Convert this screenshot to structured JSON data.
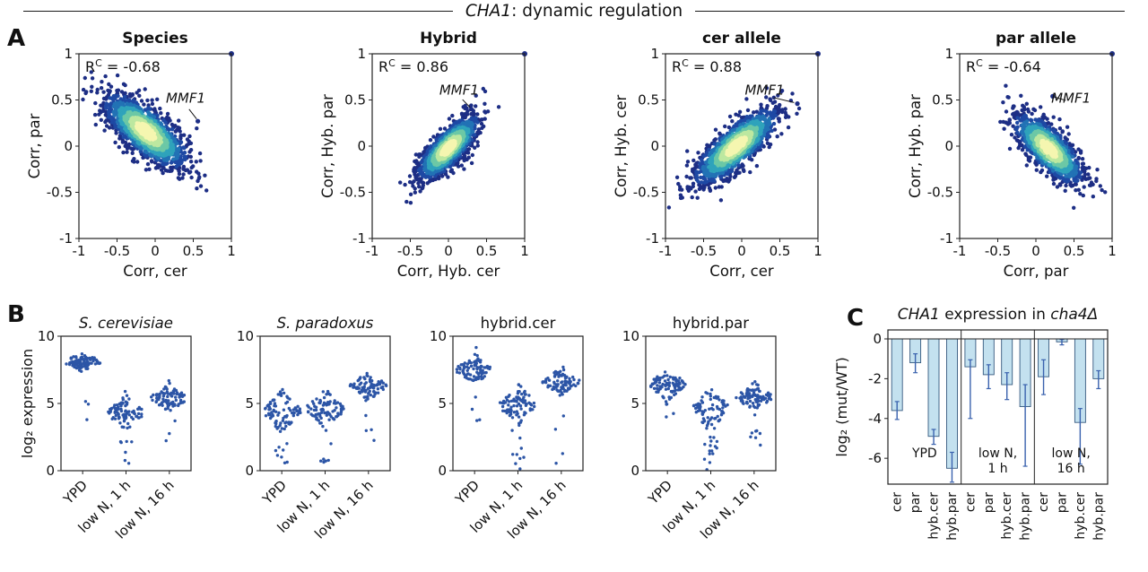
{
  "figure_title": {
    "gene": "CHA1",
    "rest": ": dynamic regulation"
  },
  "panel_letters": {
    "A": "A",
    "B": "B",
    "C": "C"
  },
  "colors": {
    "axis": "#222222",
    "text": "#111111",
    "scatter_palette": [
      "#1d2e85",
      "#1e49a4",
      "#2272b5",
      "#2fa3bb",
      "#6cc8a6",
      "#bde8a0",
      "#f5f6b0"
    ],
    "scatter_thresholds": [
      2.05,
      1.7,
      1.4,
      1.1,
      0.8,
      0.5
    ],
    "swarm_dot": "#2c55a6",
    "bar_fill": "#c3e1ef",
    "bar_edge": "#35597f",
    "error_bar": "#3a62ae"
  },
  "chart_data": [
    {
      "type": "scatter",
      "name": "species",
      "title": "Species",
      "stat": {
        "pre": "R",
        "sup": "C",
        "post": " = -0.68"
      },
      "xlabel": "Corr, cer",
      "ylabel": "Corr, par",
      "xlim": [
        -1,
        1
      ],
      "ylim": [
        -1,
        1
      ],
      "xticks": [
        -1,
        -0.5,
        0,
        0.5,
        1
      ],
      "yticks": [
        -1,
        -0.5,
        0,
        0.5,
        1
      ],
      "cloud": {
        "cx": -0.12,
        "cy": 0.16,
        "angle_deg": -33,
        "sd_major": 0.3,
        "sd_minor": 0.115,
        "n": 1500,
        "seed": 7
      },
      "outlier_point": [
        1,
        1
      ],
      "annotation": {
        "text": "MMF1",
        "tx": 0.4,
        "ty": 0.47,
        "px": 0.56,
        "py": 0.27
      }
    },
    {
      "type": "scatter",
      "name": "hybrid",
      "title": "Hybrid",
      "stat": {
        "pre": "R",
        "sup": "C",
        "post": " = 0.86"
      },
      "xlabel": "Corr, Hyb. cer",
      "ylabel": "Corr, Hyb. par",
      "xlim": [
        -1,
        1
      ],
      "ylim": [
        -1,
        1
      ],
      "xticks": [
        -1,
        -0.5,
        0,
        0.5,
        1
      ],
      "yticks": [
        -1,
        -0.5,
        0,
        0.5,
        1
      ],
      "cloud": {
        "cx": 0.0,
        "cy": -0.02,
        "angle_deg": 40,
        "sd_major": 0.24,
        "sd_minor": 0.085,
        "n": 1350,
        "seed": 8
      },
      "outlier_point": [
        1,
        1
      ],
      "annotation": {
        "text": "MMF1",
        "tx": 0.14,
        "ty": 0.56,
        "px": 0.3,
        "py": 0.4
      }
    },
    {
      "type": "scatter",
      "name": "cer-allele",
      "title": "cer allele",
      "stat": {
        "pre": "R",
        "sup": "C",
        "post": " = 0.88"
      },
      "xlabel": "Corr, cer",
      "ylabel": "Corr, Hyb. cer",
      "xlim": [
        -1,
        1
      ],
      "ylim": [
        -1,
        1
      ],
      "xticks": [
        -1,
        -0.5,
        0,
        0.5,
        1
      ],
      "yticks": [
        -1,
        -0.5,
        0,
        0.5,
        1
      ],
      "cloud": {
        "cx": -0.07,
        "cy": 0.0,
        "angle_deg": 35,
        "sd_major": 0.31,
        "sd_minor": 0.1,
        "n": 1500,
        "seed": 9
      },
      "outlier_point": [
        1,
        1
      ],
      "annotation": {
        "text": "MMF1",
        "tx": 0.3,
        "ty": 0.56,
        "px": 0.73,
        "py": 0.46
      }
    },
    {
      "type": "scatter",
      "name": "par-allele",
      "title": "par allele",
      "stat": {
        "pre": "R",
        "sup": "C",
        "post": " = -0.64"
      },
      "xlabel": "Corr, par",
      "ylabel": "Corr, Hyb. par",
      "xlim": [
        -1,
        1
      ],
      "ylim": [
        -1,
        1
      ],
      "xticks": [
        -1,
        -0.5,
        0,
        0.5,
        1
      ],
      "yticks": [
        -1,
        -0.5,
        0,
        0.5,
        1
      ],
      "cloud": {
        "cx": 0.17,
        "cy": -0.03,
        "angle_deg": -38,
        "sd_major": 0.26,
        "sd_minor": 0.1,
        "n": 1300,
        "seed": 10
      },
      "outlier_point": [
        1,
        1
      ],
      "annotation": {
        "text": "MMF1",
        "tx": 0.46,
        "ty": 0.47,
        "px": 0.22,
        "py": 0.54
      }
    },
    {
      "type": "strip",
      "name": "s-cerevisiae",
      "title": "S. cerevisiae",
      "title_italic": true,
      "ylabel": "log₂ expression",
      "show_ylabel": true,
      "ylim": [
        0,
        10
      ],
      "yticks": [
        0,
        5,
        10
      ],
      "categories": [
        "YPD",
        "low N, 1 h",
        "low N, 16 h"
      ],
      "groups": [
        {
          "mean": 8.1,
          "sd": 0.3,
          "n": 90,
          "seed": 101,
          "tail": {
            "lo": 2.3,
            "hi": 6.5,
            "n": 3
          }
        },
        {
          "mean": 4.3,
          "sd": 0.55,
          "n": 85,
          "seed": 102,
          "tail": {
            "lo": 0,
            "hi": 2.6,
            "n": 7
          }
        },
        {
          "mean": 5.4,
          "sd": 0.45,
          "n": 85,
          "seed": 103,
          "tail": {
            "lo": 0,
            "hi": 4.0,
            "n": 3
          }
        }
      ]
    },
    {
      "type": "strip",
      "name": "s-paradoxus",
      "title": "S. paradoxus",
      "title_italic": true,
      "ylabel": "",
      "show_ylabel": false,
      "ylim": [
        0,
        10
      ],
      "yticks": [
        0,
        5,
        10
      ],
      "categories": [
        "YPD",
        "low N, 1 h",
        "low N, 16 h"
      ],
      "groups": [
        {
          "mean": 4.4,
          "sd": 0.7,
          "n": 85,
          "seed": 104,
          "tail": {
            "lo": 0,
            "hi": 2.2,
            "n": 8
          }
        },
        {
          "mean": 4.6,
          "sd": 0.65,
          "n": 85,
          "seed": 105,
          "tail": {
            "lo": 0,
            "hi": 2.6,
            "n": 6
          }
        },
        {
          "mean": 6.3,
          "sd": 0.45,
          "n": 85,
          "seed": 106,
          "tail": {
            "lo": 0,
            "hi": 4.3,
            "n": 4
          }
        }
      ]
    },
    {
      "type": "strip",
      "name": "hybrid-cer",
      "title": "hybrid.cer",
      "title_italic": false,
      "ylabel": "",
      "show_ylabel": false,
      "ylim": [
        0,
        10
      ],
      "yticks": [
        0,
        5,
        10
      ],
      "categories": [
        "YPD",
        "low N, 1 h",
        "low N, 16 h"
      ],
      "groups": [
        {
          "mean": 7.5,
          "sd": 0.45,
          "n": 90,
          "seed": 107,
          "tail": {
            "lo": 0.3,
            "hi": 5.8,
            "n": 4
          }
        },
        {
          "mean": 4.9,
          "sd": 0.65,
          "n": 85,
          "seed": 108,
          "tail": {
            "lo": 0,
            "hi": 3.0,
            "n": 9
          }
        },
        {
          "mean": 6.6,
          "sd": 0.45,
          "n": 85,
          "seed": 109,
          "tail": {
            "lo": 0,
            "hi": 5.0,
            "n": 4
          }
        }
      ]
    },
    {
      "type": "strip",
      "name": "hybrid-par",
      "title": "hybrid.par",
      "title_italic": false,
      "ylabel": "",
      "show_ylabel": false,
      "ylim": [
        0,
        10
      ],
      "yticks": [
        0,
        5,
        10
      ],
      "categories": [
        "YPD",
        "low N, 1 h",
        "low N, 16 h"
      ],
      "groups": [
        {
          "mean": 6.4,
          "sd": 0.5,
          "n": 90,
          "seed": 110,
          "tail": {
            "lo": 3.5,
            "hi": 5.3,
            "n": 4
          }
        },
        {
          "mean": 4.6,
          "sd": 0.75,
          "n": 78,
          "seed": 111,
          "tail": {
            "lo": 0,
            "hi": 2.8,
            "n": 14
          }
        },
        {
          "mean": 5.5,
          "sd": 0.45,
          "n": 85,
          "seed": 112,
          "tail": {
            "lo": 0,
            "hi": 3.6,
            "n": 7
          }
        }
      ]
    },
    {
      "type": "bar",
      "name": "cha1-expression-cha4",
      "title_parts": [
        {
          "text": "CHA1",
          "italic": true
        },
        {
          "text": " expression in ",
          "italic": false
        },
        {
          "text": "cha4Δ",
          "italic": true
        }
      ],
      "ylabel": "log₂ (mut/WT)",
      "ylim": [
        -7.3,
        0.45
      ],
      "yticks": [
        0,
        -2,
        -4,
        -6
      ],
      "group_size": 4,
      "group_labels": [
        [
          "YPD"
        ],
        [
          "low N,",
          "1 h"
        ],
        [
          "low N,",
          "16 h"
        ]
      ],
      "categories": [
        "cer",
        "par",
        "hyb.cer",
        "hyb.par",
        "cer",
        "par",
        "hyb.cer",
        "hyb.par",
        "cer",
        "par",
        "hyb.cer",
        "hyb.par"
      ],
      "values": [
        -3.6,
        -1.2,
        -4.9,
        -6.5,
        -1.4,
        -1.8,
        -2.3,
        -3.4,
        -1.9,
        -0.15,
        -4.2,
        -2.0
      ],
      "err_up": [
        0.45,
        0.45,
        0.35,
        0.8,
        0.35,
        0.5,
        0.6,
        1.1,
        0.85,
        0.12,
        0.7,
        0.4
      ],
      "err_down": [
        0.45,
        0.5,
        0.4,
        0.7,
        2.6,
        0.7,
        0.75,
        3.0,
        0.9,
        0.15,
        2.1,
        0.5
      ]
    }
  ]
}
